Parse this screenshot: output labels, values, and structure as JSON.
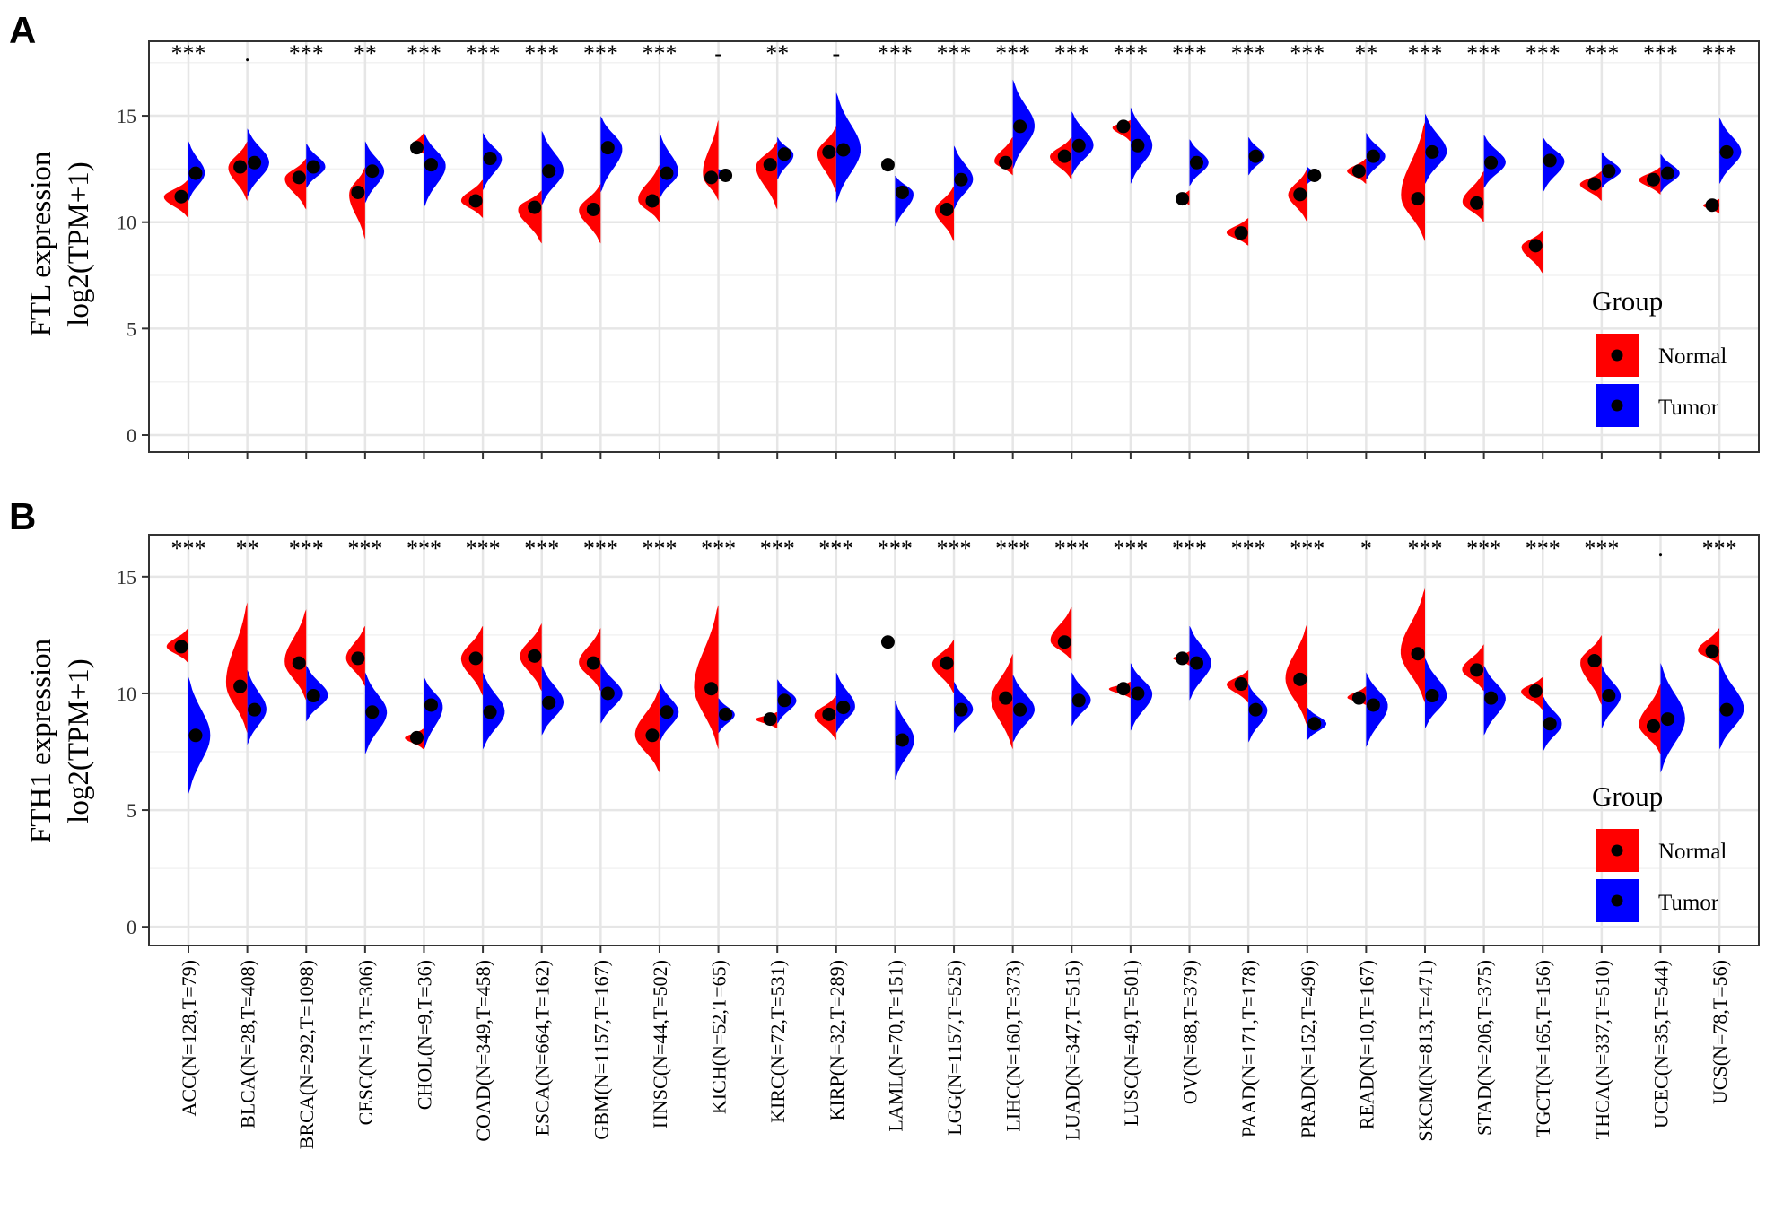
{
  "panels": [
    {
      "letter": "A",
      "gene_label": "FTL expression",
      "ylabel": "log2(TPM+1)"
    },
    {
      "letter": "B",
      "gene_label": "FTH1 expression",
      "ylabel": "log2(TPM+1)"
    }
  ],
  "legend": {
    "title": "Group",
    "items": [
      {
        "label": "Normal",
        "color": "#ff0000"
      },
      {
        "label": "Tumor",
        "color": "#0000ff"
      }
    ]
  },
  "chart_data": [
    {
      "type": "split-violin",
      "ylabel": "FTL expression log2(TPM+1)",
      "ylim": [
        -0.8,
        18.5
      ],
      "yticks": [
        0,
        5,
        10,
        15
      ],
      "grid": true,
      "legend_position": "right",
      "categories": [
        "ACC(N=128,T=79)",
        "BLCA(N=28,T=408)",
        "BRCA(N=292,T=1098)",
        "CESC(N=13,T=306)",
        "CHOL(N=9,T=36)",
        "COAD(N=349,T=458)",
        "ESCA(N=664,T=162)",
        "GBM(N=1157,T=167)",
        "HNSC(N=44,T=502)",
        "KICH(N=52,T=65)",
        "KIRC(N=72,T=531)",
        "KIRP(N=32,T=289)",
        "LAML(N=70,T=151)",
        "LGG(N=1157,T=525)",
        "LIHC(N=160,T=373)",
        "LUAD(N=347,T=515)",
        "LUSC(N=49,T=501)",
        "OV(N=88,T=379)",
        "PAAD(N=171,T=178)",
        "PRAD(N=152,T=496)",
        "READ(N=10,T=167)",
        "SKCM(N=813,T=471)",
        "STAD(N=206,T=375)",
        "TGCT(N=165,T=156)",
        "THCA(N=337,T=510)",
        "UCEC(N=35,T=544)",
        "UCS(N=78,T=56)"
      ],
      "significance": [
        "***",
        ".",
        "***",
        "**",
        "***",
        "***",
        "***",
        "***",
        "***",
        "-",
        "**",
        "-",
        "***",
        "***",
        "***",
        "***",
        "***",
        "***",
        "***",
        "***",
        "**",
        "***",
        "***",
        "***",
        "***",
        "***",
        "***"
      ],
      "series": [
        {
          "name": "Normal",
          "color": "#ff0000",
          "median": [
            11.2,
            12.6,
            12.1,
            11.4,
            13.5,
            11.0,
            10.7,
            10.6,
            11.0,
            12.1,
            12.7,
            13.3,
            12.7,
            10.6,
            12.8,
            13.1,
            14.5,
            11.1,
            9.5,
            11.3,
            12.4,
            11.1,
            10.9,
            8.9,
            11.8,
            12.0,
            10.8
          ],
          "low": [
            10.2,
            11.0,
            10.6,
            9.2,
            13.2,
            10.2,
            9.0,
            9.0,
            10.0,
            11.0,
            10.6,
            11.4,
            12.7,
            9.1,
            12.2,
            12.0,
            13.8,
            10.8,
            8.9,
            10.0,
            11.8,
            9.1,
            10.0,
            7.6,
            11.0,
            11.3,
            10.4
          ],
          "high": [
            12.0,
            13.8,
            13.0,
            12.6,
            14.2,
            12.0,
            11.5,
            11.8,
            12.7,
            14.8,
            13.8,
            14.5,
            12.7,
            11.7,
            14.0,
            14.0,
            14.8,
            11.5,
            10.2,
            12.5,
            13.0,
            14.7,
            12.4,
            9.6,
            12.4,
            12.6,
            11.1
          ],
          "width": [
            0.9,
            0.7,
            0.8,
            0.6,
            0.5,
            0.8,
            0.9,
            0.8,
            0.8,
            0.6,
            0.8,
            0.7,
            0.0,
            0.7,
            0.7,
            0.8,
            0.7,
            0.5,
            0.8,
            0.7,
            0.7,
            0.9,
            0.8,
            0.8,
            0.8,
            0.8,
            0.6
          ]
        },
        {
          "name": "Tumor",
          "color": "#0000ff",
          "median": [
            12.3,
            12.8,
            12.6,
            12.4,
            12.7,
            13.0,
            12.4,
            13.5,
            12.3,
            12.2,
            13.2,
            13.4,
            11.4,
            12.0,
            14.5,
            13.6,
            13.6,
            12.8,
            13.1,
            12.2,
            13.1,
            13.3,
            12.8,
            12.9,
            12.4,
            12.3,
            13.3
          ],
          "low": [
            11.0,
            11.2,
            11.6,
            10.9,
            10.7,
            11.5,
            10.8,
            11.4,
            11.1,
            12.0,
            12.0,
            10.9,
            9.8,
            10.6,
            12.5,
            12.2,
            11.8,
            11.7,
            12.2,
            11.8,
            12.0,
            11.8,
            11.6,
            11.4,
            11.6,
            11.4,
            11.8
          ],
          "high": [
            13.8,
            14.4,
            13.7,
            13.8,
            14.2,
            14.2,
            14.3,
            15.0,
            14.2,
            12.5,
            14.0,
            16.1,
            12.2,
            13.6,
            16.7,
            15.2,
            15.4,
            13.9,
            14.0,
            12.6,
            14.2,
            15.1,
            14.1,
            14.0,
            13.3,
            13.2,
            14.9
          ],
          "width": [
            0.6,
            0.8,
            0.7,
            0.7,
            0.8,
            0.7,
            0.8,
            0.8,
            0.7,
            0.4,
            0.6,
            0.9,
            0.7,
            0.7,
            0.8,
            0.8,
            0.8,
            0.7,
            0.6,
            0.5,
            0.7,
            0.8,
            0.8,
            0.8,
            0.7,
            0.7,
            0.8
          ]
        }
      ]
    },
    {
      "type": "split-violin",
      "ylabel": "FTH1 expression log2(TPM+1)",
      "ylim": [
        -0.8,
        16.8
      ],
      "yticks": [
        0,
        5,
        10,
        15
      ],
      "grid": true,
      "legend_position": "right",
      "categories": [
        "ACC(N=128,T=79)",
        "BLCA(N=28,T=408)",
        "BRCA(N=292,T=1098)",
        "CESC(N=13,T=306)",
        "CHOL(N=9,T=36)",
        "COAD(N=349,T=458)",
        "ESCA(N=664,T=162)",
        "GBM(N=1157,T=167)",
        "HNSC(N=44,T=502)",
        "KICH(N=52,T=65)",
        "KIRC(N=72,T=531)",
        "KIRP(N=32,T=289)",
        "LAML(N=70,T=151)",
        "LGG(N=1157,T=525)",
        "LIHC(N=160,T=373)",
        "LUAD(N=347,T=515)",
        "LUSC(N=49,T=501)",
        "OV(N=88,T=379)",
        "PAAD(N=171,T=178)",
        "PRAD(N=152,T=496)",
        "READ(N=10,T=167)",
        "SKCM(N=813,T=471)",
        "STAD(N=206,T=375)",
        "TGCT(N=165,T=156)",
        "THCA(N=337,T=510)",
        "UCEC(N=35,T=544)",
        "UCS(N=78,T=56)"
      ],
      "significance": [
        "***",
        "**",
        "***",
        "***",
        "***",
        "***",
        "***",
        "***",
        "***",
        "***",
        "***",
        "***",
        "***",
        "***",
        "***",
        "***",
        "***",
        "***",
        "***",
        "***",
        "*",
        "***",
        "***",
        "***",
        "***",
        ".",
        "***"
      ],
      "series": [
        {
          "name": "Normal",
          "color": "#ff0000",
          "median": [
            12.0,
            10.3,
            11.3,
            11.5,
            8.1,
            11.5,
            11.6,
            11.3,
            8.2,
            10.2,
            8.9,
            9.1,
            12.2,
            11.3,
            9.8,
            12.2,
            10.2,
            11.5,
            10.4,
            10.6,
            9.8,
            11.7,
            11.0,
            10.1,
            11.4,
            8.6,
            11.8
          ],
          "low": [
            11.3,
            8.3,
            9.7,
            10.3,
            7.6,
            9.9,
            10.1,
            10.1,
            6.6,
            7.6,
            8.5,
            8.0,
            12.2,
            10.0,
            7.6,
            11.4,
            9.8,
            11.2,
            9.6,
            8.6,
            9.5,
            9.6,
            10.1,
            9.3,
            9.5,
            7.4,
            11.2
          ],
          "high": [
            12.8,
            13.9,
            13.6,
            12.9,
            8.5,
            12.9,
            13.0,
            12.8,
            10.2,
            13.8,
            9.2,
            9.9,
            12.2,
            12.3,
            11.7,
            13.7,
            10.5,
            11.8,
            11.0,
            13.0,
            10.3,
            14.5,
            12.1,
            10.7,
            12.5,
            10.4,
            12.8
          ],
          "width": [
            0.8,
            0.8,
            0.8,
            0.7,
            0.7,
            0.8,
            0.8,
            0.8,
            0.9,
            0.9,
            0.8,
            0.8,
            0.0,
            0.8,
            0.8,
            0.8,
            0.8,
            0.6,
            0.8,
            0.8,
            0.7,
            0.9,
            0.8,
            0.8,
            0.8,
            0.8,
            0.8
          ]
        },
        {
          "name": "Tumor",
          "color": "#0000ff",
          "median": [
            8.2,
            9.3,
            9.9,
            9.2,
            9.5,
            9.2,
            9.6,
            10.0,
            9.2,
            9.1,
            9.7,
            9.4,
            8.0,
            9.3,
            9.3,
            9.7,
            10.0,
            11.3,
            9.3,
            8.7,
            9.5,
            9.9,
            9.8,
            8.7,
            9.9,
            8.9,
            9.3
          ],
          "low": [
            5.7,
            7.8,
            8.8,
            7.4,
            7.6,
            7.6,
            8.2,
            8.7,
            7.9,
            8.3,
            8.7,
            8.3,
            6.3,
            8.3,
            7.9,
            8.6,
            8.4,
            9.7,
            7.9,
            8.0,
            7.7,
            8.5,
            8.2,
            7.5,
            8.5,
            6.6,
            7.6
          ],
          "high": [
            10.7,
            11.0,
            11.2,
            10.9,
            10.7,
            10.9,
            11.2,
            11.3,
            10.5,
            9.8,
            10.6,
            10.9,
            9.7,
            10.5,
            10.8,
            10.9,
            11.3,
            12.9,
            10.4,
            9.4,
            10.9,
            11.5,
            11.2,
            9.9,
            11.2,
            11.3,
            11.4
          ],
          "width": [
            0.8,
            0.7,
            0.8,
            0.8,
            0.7,
            0.8,
            0.8,
            0.8,
            0.7,
            0.6,
            0.7,
            0.7,
            0.7,
            0.7,
            0.8,
            0.7,
            0.8,
            0.8,
            0.7,
            0.7,
            0.8,
            0.8,
            0.8,
            0.7,
            0.7,
            0.9,
            0.9
          ]
        }
      ]
    }
  ]
}
